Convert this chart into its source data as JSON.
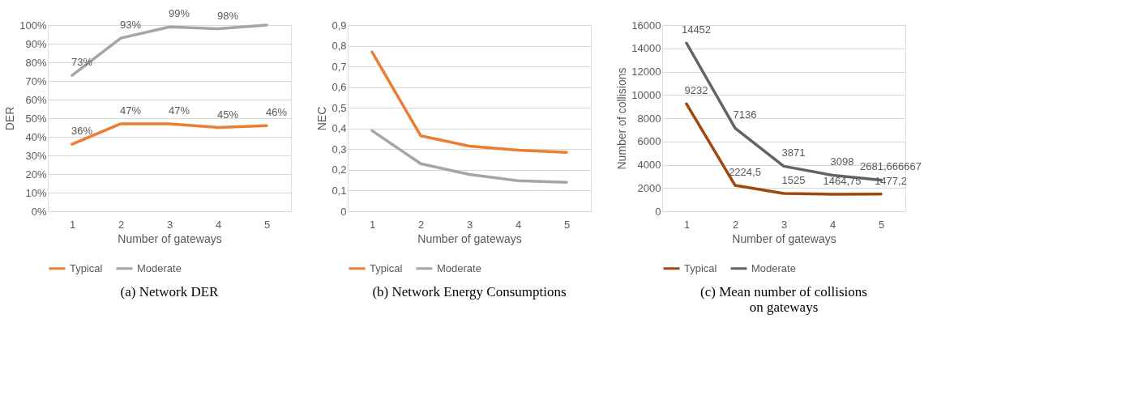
{
  "chart_data": [
    {
      "type": "line",
      "title": "(a)    Network DER",
      "xlabel": "Number of gateways",
      "ylabel": "DER",
      "categories": [
        "1",
        "2",
        "3",
        "4",
        "5"
      ],
      "series": [
        {
          "name": "Typical",
          "color": "#ed7d31",
          "values": [
            36,
            47,
            47,
            45,
            46
          ],
          "value_labels": [
            "36%",
            "47%",
            "47%",
            "45%",
            "46%"
          ]
        },
        {
          "name": "Moderate",
          "color": "#a5a5a5",
          "values": [
            73,
            93,
            99,
            98,
            100
          ],
          "value_labels": [
            "73%",
            "93%",
            "99%",
            "98%",
            null
          ]
        }
      ],
      "ylim": [
        0,
        100
      ],
      "yticks": [
        {
          "value": 0,
          "label": "0%"
        },
        {
          "value": 10,
          "label": "10%"
        },
        {
          "value": 20,
          "label": "20%"
        },
        {
          "value": 30,
          "label": "30%"
        },
        {
          "value": 40,
          "label": "40%"
        },
        {
          "value": 50,
          "label": "50%"
        },
        {
          "value": 60,
          "label": "60%"
        },
        {
          "value": 70,
          "label": "70%"
        },
        {
          "value": 80,
          "label": "80%"
        },
        {
          "value": 90,
          "label": "90%"
        },
        {
          "value": 100,
          "label": "100%"
        }
      ],
      "grid": "y",
      "legend": "bottom"
    },
    {
      "type": "line",
      "title": "(b)    Network Energy Consumptions",
      "xlabel": "Number of gateways",
      "ylabel": "NEC",
      "categories": [
        "1",
        "2",
        "3",
        "4",
        "5"
      ],
      "series": [
        {
          "name": "Typical",
          "color": "#ed7d31",
          "values": [
            0.77,
            0.365,
            0.315,
            0.295,
            0.285
          ]
        },
        {
          "name": "Moderate",
          "color": "#a5a5a5",
          "values": [
            0.39,
            0.23,
            0.178,
            0.148,
            0.14
          ]
        }
      ],
      "ylim": [
        0,
        0.9
      ],
      "yticks": [
        0,
        {
          "value": 0.1,
          "label": "0,1"
        },
        {
          "value": 0.2,
          "label": "0,2"
        },
        {
          "value": 0.3,
          "label": "0,3"
        },
        {
          "value": 0.4,
          "label": "0,4"
        },
        {
          "value": 0.5,
          "label": "0,5"
        },
        {
          "value": 0.6,
          "label": "0,6"
        },
        {
          "value": 0.7,
          "label": "0,7"
        },
        {
          "value": 0.8,
          "label": "0,8"
        },
        {
          "value": 0.9,
          "label": "0,9"
        }
      ],
      "grid": "y",
      "legend": "bottom"
    },
    {
      "type": "line",
      "title": "(c)    Mean number of collisions on gateways",
      "xlabel": "Number of gateways",
      "ylabel": "Number of collisions",
      "categories": [
        "1",
        "2",
        "3",
        "4",
        "5"
      ],
      "series": [
        {
          "name": "Typical",
          "color": "#9e480e",
          "values": [
            9232,
            2224.5,
            1525,
            1464.75,
            1477.2
          ],
          "value_labels": [
            "9232",
            "2224,5",
            "1525",
            "1464,75",
            "1477,2"
          ]
        },
        {
          "name": "Moderate",
          "color": "#636363",
          "values": [
            14452,
            7136,
            3871,
            3098,
            2681.666667
          ],
          "value_labels": [
            "14452",
            "7136",
            "3871",
            "3098",
            "2681,666667"
          ]
        }
      ],
      "ylim": [
        0,
        16000
      ],
      "yticks": [
        0,
        2000,
        4000,
        6000,
        8000,
        10000,
        12000,
        14000,
        16000
      ],
      "grid": "y",
      "legend": "bottom"
    }
  ]
}
